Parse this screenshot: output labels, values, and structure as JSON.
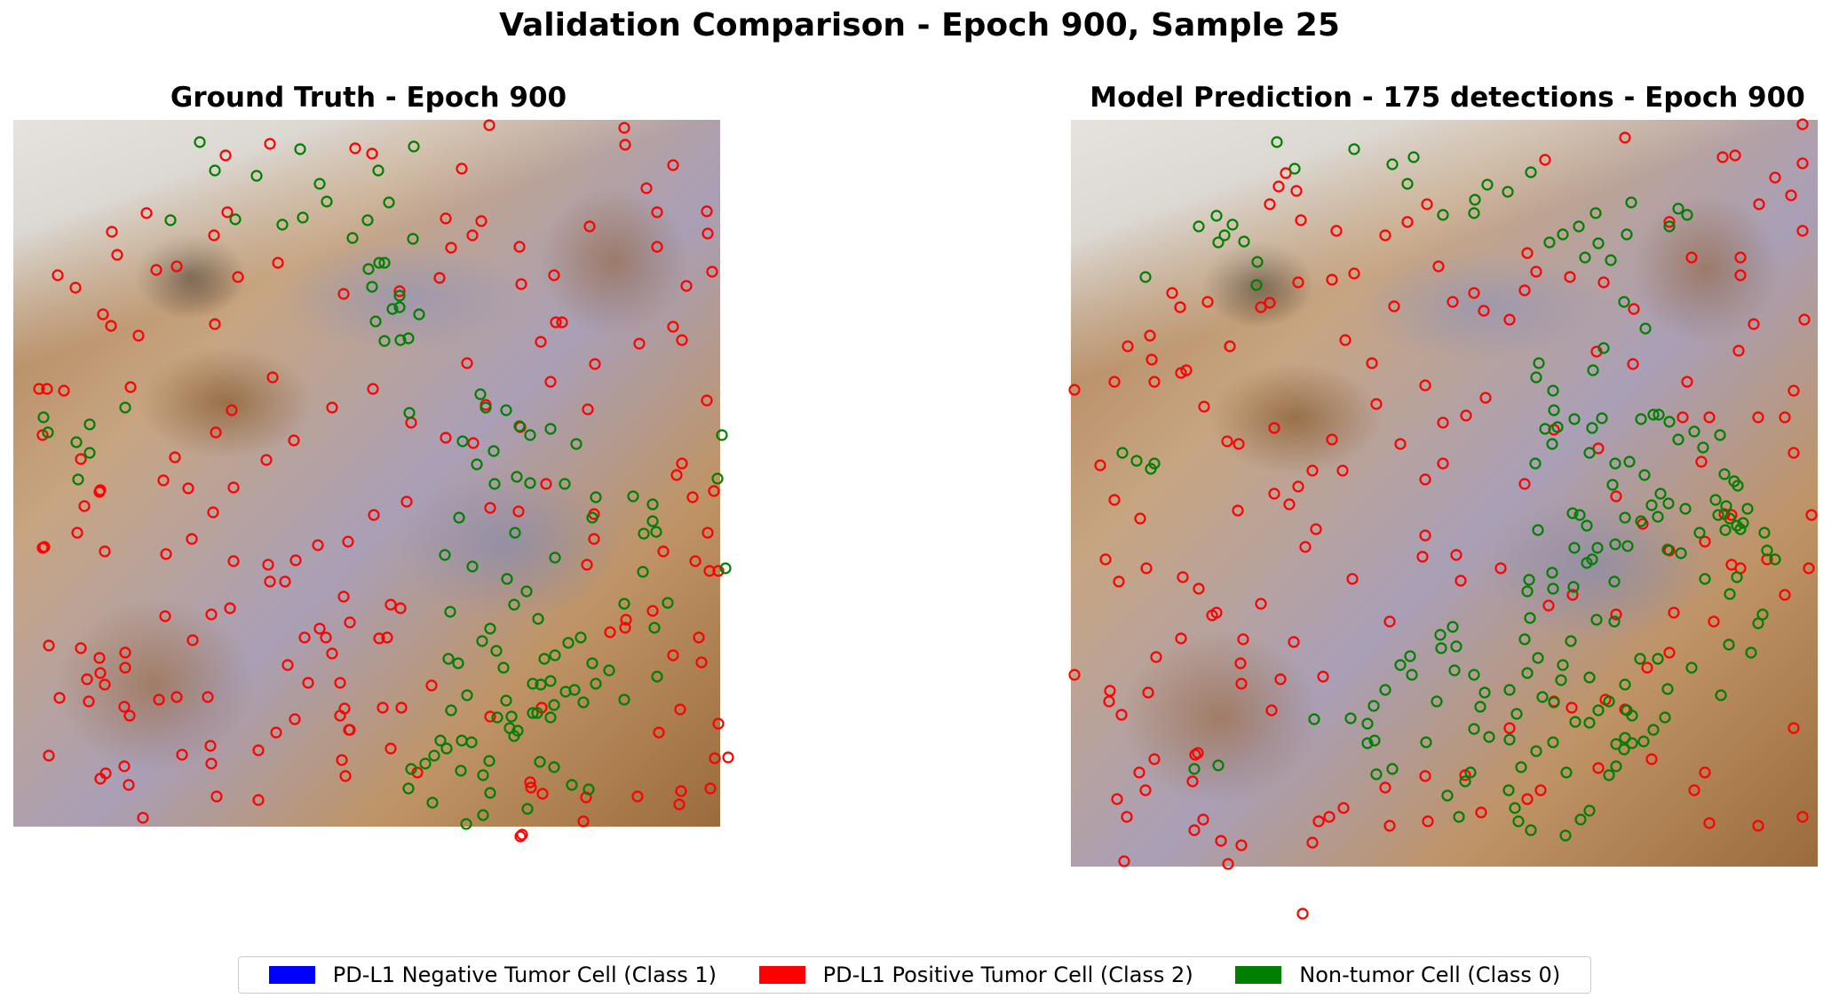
{
  "suptitle": "Validation Comparison - Epoch 900, Sample 25",
  "panels": {
    "ground_truth": {
      "title": "Ground Truth  - Epoch 900"
    },
    "prediction": {
      "title": "Model Prediction - 175 detections - Epoch 900"
    }
  },
  "colors": {
    "class0": "#008000",
    "class1": "#0000ff",
    "class2": "#ff0000"
  },
  "legend": [
    {
      "label": "PD-L1 Negative Tumor Cell (Class 1)",
      "color": "#0000ff"
    },
    {
      "label": "PD-L1 Positive Tumor Cell (Class 2)",
      "color": "#ff0000"
    },
    {
      "label": "Non-tumor Cell (Class 0)",
      "color": "#008000"
    }
  ]
}
